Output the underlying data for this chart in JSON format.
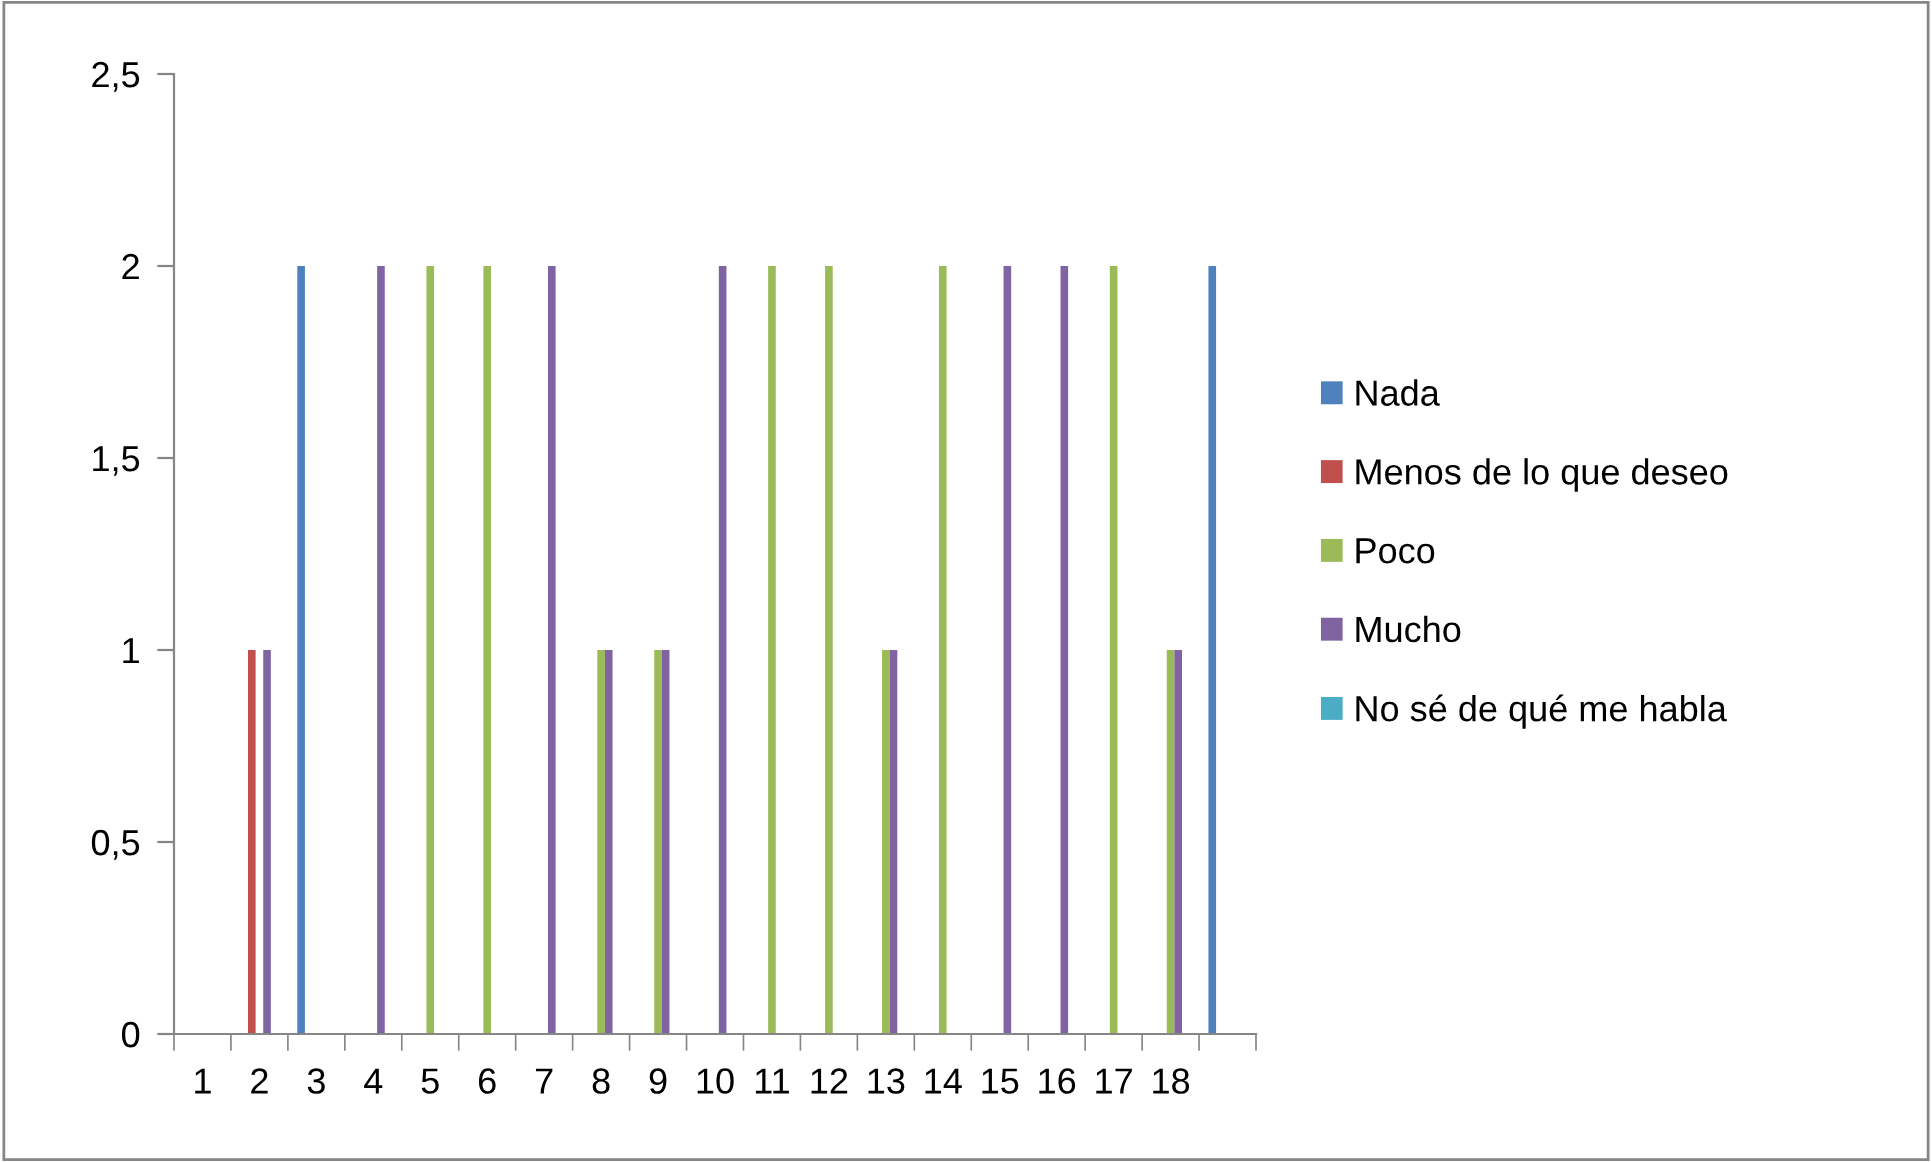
{
  "chart_data": {
    "type": "bar",
    "categories": [
      "1",
      "2",
      "3",
      "4",
      "5",
      "6",
      "7",
      "8",
      "9",
      "10",
      "11",
      "12",
      "13",
      "14",
      "15",
      "16",
      "17",
      "18",
      null
    ],
    "series": [
      {
        "name": "Nada",
        "color": "#4f81bd",
        "values": [
          null,
          null,
          2,
          null,
          null,
          null,
          null,
          null,
          null,
          null,
          null,
          null,
          null,
          null,
          null,
          null,
          null,
          null,
          2
        ]
      },
      {
        "name": "Menos de lo que deseo",
        "color": "#c0504d",
        "values": [
          null,
          1,
          null,
          null,
          null,
          null,
          null,
          null,
          null,
          null,
          null,
          null,
          null,
          null,
          null,
          null,
          null,
          null,
          null
        ]
      },
      {
        "name": "Poco",
        "color": "#9bbb59",
        "values": [
          null,
          null,
          null,
          null,
          2,
          2,
          null,
          1,
          1,
          null,
          2,
          2,
          1,
          2,
          null,
          null,
          2,
          1,
          null
        ]
      },
      {
        "name": "Mucho",
        "color": "#8064a2",
        "values": [
          null,
          1,
          null,
          2,
          null,
          null,
          2,
          1,
          1,
          2,
          null,
          null,
          1,
          null,
          2,
          2,
          null,
          1,
          null
        ]
      },
      {
        "name": "No sé de qué me habla",
        "color": "#4bacc6",
        "values": [
          null,
          null,
          null,
          null,
          null,
          null,
          null,
          null,
          null,
          null,
          null,
          null,
          null,
          null,
          null,
          null,
          null,
          null,
          null
        ]
      }
    ],
    "ylim": [
      0,
      2.5
    ],
    "yticks": [
      0,
      {
        "value": 0.5,
        "label": "0,5"
      },
      1,
      {
        "value": 1.5,
        "label": "1,5"
      },
      2,
      {
        "value": 2.5,
        "label": "2,5"
      }
    ],
    "grid": false,
    "legend": "right"
  }
}
